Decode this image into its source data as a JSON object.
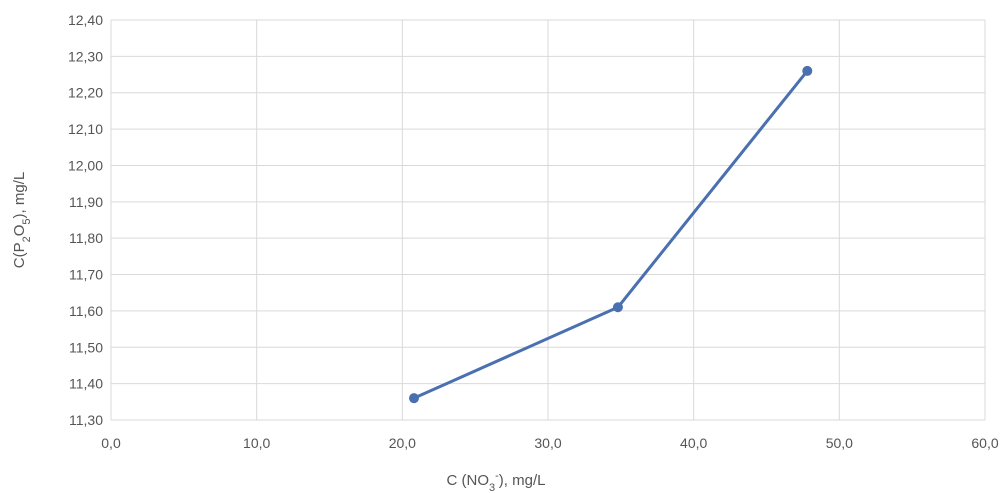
{
  "chart_data": {
    "type": "line",
    "title": "",
    "xlabel": "C (NO3-), mg/L",
    "ylabel": "C(P2O5), mg/L",
    "xlabel_parts": [
      {
        "text": "C (NO",
        "shift": "normal"
      },
      {
        "text": "3",
        "shift": "sub"
      },
      {
        "text": "-",
        "shift": "super"
      },
      {
        "text": "), mg/L",
        "shift": "normal"
      }
    ],
    "ylabel_parts": [
      {
        "text": "C(P",
        "shift": "normal"
      },
      {
        "text": "2",
        "shift": "sub"
      },
      {
        "text": "O",
        "shift": "normal"
      },
      {
        "text": "5",
        "shift": "sub"
      },
      {
        "text": "), mg/L",
        "shift": "normal"
      }
    ],
    "xlim": [
      0,
      60
    ],
    "ylim": [
      11.3,
      12.4
    ],
    "x_ticks": [
      "0,0",
      "10,0",
      "20,0",
      "30,0",
      "40,0",
      "50,0",
      "60,0"
    ],
    "y_ticks": [
      "11,30",
      "11,40",
      "11,50",
      "11,60",
      "11,70",
      "11,80",
      "11,90",
      "12,00",
      "12,10",
      "12,20",
      "12,30",
      "12,40"
    ],
    "grid": true,
    "legend": "none",
    "series": [
      {
        "color": "#4a70b0",
        "x": [
          20.8,
          34.8,
          47.8
        ],
        "y": [
          11.36,
          11.61,
          12.26
        ]
      }
    ]
  }
}
